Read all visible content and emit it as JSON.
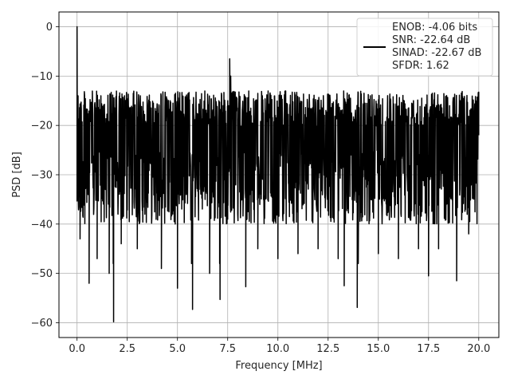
{
  "chart_data": {
    "type": "line",
    "title": "",
    "xlabel": "Frequency [MHz]",
    "ylabel": "PSD [dB]",
    "xlim": [
      -0.9,
      21.0
    ],
    "ylim": [
      -63,
      3
    ],
    "xticks": [
      0.0,
      2.5,
      5.0,
      7.5,
      10.0,
      12.5,
      15.0,
      17.5,
      20.0
    ],
    "xtick_labels": [
      "0.0",
      "2.5",
      "5.0",
      "7.5",
      "10.0",
      "12.5",
      "15.0",
      "17.5",
      "20.0"
    ],
    "yticks": [
      0,
      -10,
      -20,
      -30,
      -40,
      -50,
      -60
    ],
    "ytick_labels": [
      "0",
      "−10",
      "−20",
      "−30",
      "−40",
      "−50",
      "−60"
    ],
    "grid": true,
    "legend_position": "top-right",
    "series": [
      {
        "color": "#000000",
        "legend_lines": [
          "ENOB: -4.06 bits",
          "SNR: -22.64 dB",
          "SINAD: -22.67 dB",
          "SFDR: 1.62"
        ],
        "noise_floor_db": -25,
        "noise_top_db": -13,
        "noise_bottom_db": -40,
        "x": [
          0.0,
          0.05,
          0.15,
          0.3,
          0.6,
          1.0,
          1.6,
          1.8,
          1.82,
          2.2,
          3.0,
          4.2,
          5.0,
          5.7,
          5.75,
          6.6,
          7.1,
          7.12,
          7.5,
          7.6,
          7.65,
          7.7,
          8.4,
          9.0,
          10.0,
          11.0,
          12.0,
          13.0,
          13.3,
          13.95,
          14.0,
          15.0,
          16.0,
          17.0,
          17.5,
          18.0,
          18.9,
          19.5,
          20.0
        ],
        "y": [
          0,
          -14,
          -43,
          -30,
          -52,
          -47,
          -50,
          -48,
          -59.8,
          -44,
          -45,
          -49,
          -53,
          -48,
          -57.3,
          -50,
          -48,
          -55.3,
          -15,
          -6.5,
          -10,
          -20,
          -52.7,
          -45,
          -47,
          -46,
          -45,
          -47,
          -52.5,
          -56.9,
          -48,
          -46,
          -47,
          -45,
          -50.5,
          -45,
          -51.5,
          -42,
          -22
        ]
      }
    ]
  }
}
